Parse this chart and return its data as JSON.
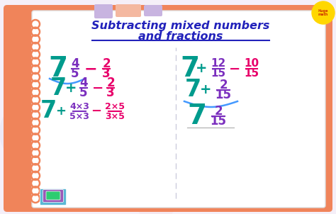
{
  "title_line1": "Subtracting mixed numbers",
  "title_line2": "and fractions",
  "title_color": "#2222BB",
  "teal_color": "#009B8D",
  "purple_color": "#7B2FBE",
  "pink_color": "#E8006A",
  "blue_bracket": "#4499FF",
  "bg_color": "#F5EFF8",
  "outer_color": "#F0845A",
  "inner_bg": "#FFFFFF",
  "spiral_color": "#F0845A",
  "divider_color": "#CCCCDD",
  "tab1_color": "#C8B4E0",
  "tab2_color": "#F4B8A0",
  "tab3_color": "#C8B4E0",
  "logo_color": "#FFD700",
  "logo_text_color": "#CC3300",
  "blob1_color": "#EDE8F5",
  "blob2_color": "#F5E8F0",
  "book1_color": "#5BB8D4",
  "book2_color": "#9B59B6",
  "book3_color": "#2ECC71"
}
